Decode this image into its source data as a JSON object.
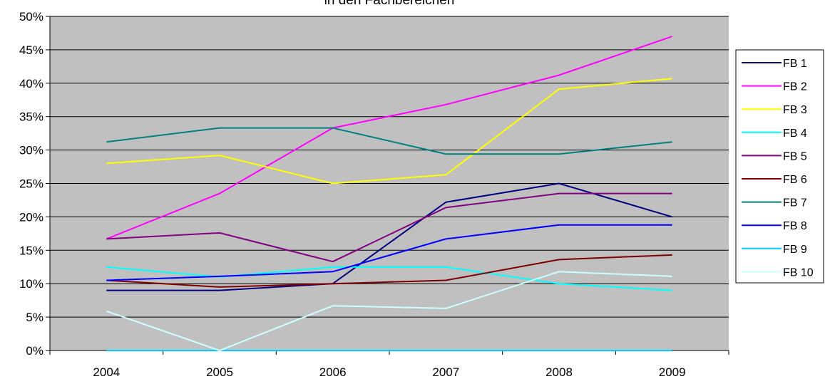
{
  "chart_data": {
    "type": "line",
    "title": "in den Fachbereichen",
    "x": [
      "2004",
      "2005",
      "2006",
      "2007",
      "2008",
      "2009"
    ],
    "ylim": [
      0,
      50
    ],
    "y_ticks": [
      "0%",
      "5%",
      "10%",
      "15%",
      "20%",
      "25%",
      "30%",
      "35%",
      "40%",
      "45%",
      "50%"
    ],
    "grid": true,
    "legend_position": "right",
    "series": [
      {
        "name": "FB 1",
        "color": "#000080",
        "values": [
          9,
          9,
          10,
          22.2,
          25,
          20
        ]
      },
      {
        "name": "FB 2",
        "color": "#ff00ff",
        "values": [
          16.7,
          23.5,
          33.3,
          36.8,
          41.2,
          47
        ]
      },
      {
        "name": "FB 3",
        "color": "#ffff00",
        "values": [
          28,
          29.2,
          25,
          26.3,
          39.1,
          40.7
        ]
      },
      {
        "name": "FB 4",
        "color": "#00ffff",
        "values": [
          12.5,
          11,
          12.5,
          12.5,
          10,
          9
        ]
      },
      {
        "name": "FB 5",
        "color": "#800080",
        "values": [
          16.7,
          17.6,
          13.3,
          21.4,
          23.5,
          23.5
        ]
      },
      {
        "name": "FB 6",
        "color": "#800000",
        "values": [
          10.5,
          9.5,
          10,
          10.5,
          13.6,
          14.3
        ]
      },
      {
        "name": "FB 7",
        "color": "#008080",
        "values": [
          31.2,
          33.3,
          33.3,
          29.4,
          29.4,
          31.2
        ]
      },
      {
        "name": "FB 8",
        "color": "#0000ff",
        "values": [
          10.5,
          11.1,
          11.8,
          16.7,
          18.8,
          18.8
        ]
      },
      {
        "name": "FB 9",
        "color": "#00ccff",
        "values": [
          0,
          0,
          0,
          0,
          0,
          0
        ]
      },
      {
        "name": "FB 10",
        "color": "#ccffff",
        "values": [
          5.9,
          0,
          6.7,
          6.3,
          11.8,
          11.1
        ]
      }
    ]
  }
}
